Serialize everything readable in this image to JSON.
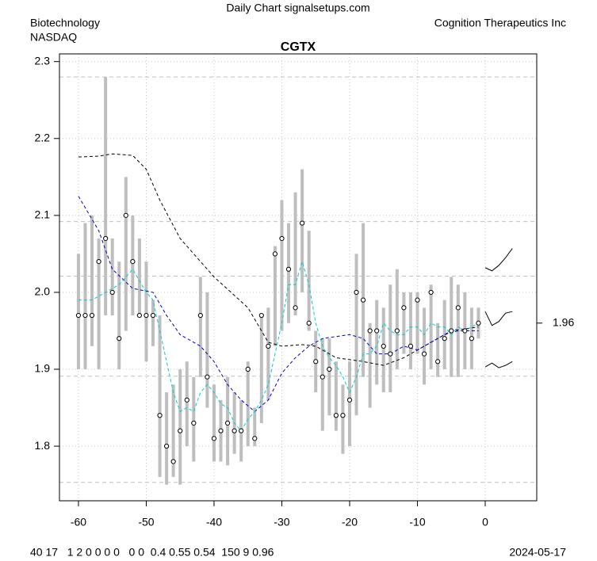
{
  "chart_data": {
    "type": "hilo",
    "title": "CGTX",
    "source": "Daily Chart signalsetups.com",
    "sector": "Biotechnology",
    "exchange": "NASDAQ",
    "company": "Cognition Therapeutics Inc",
    "footer_stats": "40 17   1 2 0 0 0 0   0 0  0.4 0.55 0.54  150 9 0.96",
    "date": "2024-05-17",
    "xlim": [
      -62.8,
      7.6
    ],
    "ylim": [
      1.729,
      2.31
    ],
    "xticks": [
      -60,
      -50,
      -40,
      -30,
      -20,
      -10,
      0
    ],
    "yticks": [
      1.8,
      1.9,
      {
        "value": 2,
        "label": "2.0"
      },
      2.1,
      2.2,
      2.3
    ],
    "grid": true,
    "hlines": [
      2.28,
      2.092,
      2.021,
      1.891,
      1.753
    ],
    "right_tick": 1.96,
    "bar_color": "#bebebe",
    "x": [
      -60,
      -59,
      -58,
      -57,
      -56,
      -55,
      -54,
      -53,
      -52,
      -51,
      -50,
      -49,
      -48,
      -47,
      -46,
      -45,
      -44,
      -43,
      -42,
      -41,
      -40,
      -39,
      -38,
      -37,
      -36,
      -35,
      -34,
      -33,
      -32,
      -31,
      -30,
      -29,
      -28,
      -27,
      -26,
      -25,
      -24,
      -23,
      -22,
      -21,
      -20,
      -19,
      -18,
      -17,
      -16,
      -15,
      -14,
      -13,
      -12,
      -11,
      -10,
      -9,
      -8,
      -7,
      -6,
      -5,
      -4,
      -3,
      -2,
      -1
    ],
    "high": [
      2.05,
      2.09,
      2.1,
      2.07,
      2.28,
      2.07,
      2.04,
      2.15,
      2.1,
      2.07,
      2.04,
      1.99,
      1.97,
      1.87,
      1.88,
      1.9,
      1.91,
      1.89,
      2.02,
      2.0,
      1.88,
      1.86,
      1.89,
      1.87,
      1.86,
      1.91,
      1.85,
      1.97,
      1.98,
      2.06,
      2.12,
      2.09,
      2.13,
      2.16,
      2.08,
      1.95,
      1.94,
      1.94,
      1.91,
      1.88,
      1.91,
      2.05,
      2.09,
      1.96,
      1.99,
      1.98,
      2.01,
      2.03,
      2.0,
      2.0,
      2.0,
      1.98,
      2.01,
      1.96,
      1.99,
      2.02,
      2.01,
      2.0,
      1.98,
      1.98
    ],
    "low": [
      1.9,
      1.9,
      1.93,
      1.9,
      1.97,
      1.97,
      1.9,
      1.95,
      1.97,
      1.97,
      1.91,
      1.93,
      1.76,
      1.75,
      1.76,
      1.75,
      1.8,
      1.78,
      1.89,
      1.85,
      1.78,
      1.78,
      1.775,
      1.79,
      1.78,
      1.8,
      1.8,
      1.83,
      1.86,
      1.93,
      1.95,
      1.96,
      1.97,
      2.0,
      1.95,
      1.87,
      1.82,
      1.84,
      1.82,
      1.79,
      1.8,
      1.84,
      1.89,
      1.85,
      1.88,
      1.87,
      1.87,
      1.9,
      1.92,
      1.9,
      1.92,
      1.88,
      1.9,
      1.89,
      1.9,
      1.89,
      1.89,
      1.9,
      1.9,
      1.94
    ],
    "close": [
      1.97,
      1.97,
      1.97,
      2.04,
      2.07,
      2.0,
      1.94,
      2.1,
      2.04,
      1.97,
      1.97,
      1.97,
      1.84,
      1.8,
      1.78,
      1.82,
      1.86,
      1.83,
      1.97,
      1.89,
      1.81,
      1.82,
      1.83,
      1.82,
      1.82,
      1.9,
      1.81,
      1.97,
      1.93,
      2.05,
      2.07,
      2.03,
      1.98,
      2.09,
      1.96,
      1.91,
      1.89,
      1.9,
      1.84,
      1.84,
      1.86,
      2.0,
      1.99,
      1.95,
      1.95,
      1.93,
      1.92,
      1.95,
      1.98,
      1.93,
      1.99,
      1.92,
      2.0,
      1.91,
      1.94,
      1.95,
      1.98,
      1.95,
      1.94,
      1.96
    ],
    "series": [
      {
        "color": "#000000",
        "dash": true,
        "x": [
          -60,
          -57,
          -55,
          -52,
          -50,
          -48,
          -45,
          -40,
          -35,
          -32,
          -30,
          -27,
          -25,
          -22,
          -18,
          -15,
          -12,
          -8,
          -5,
          -1
        ],
        "values": [
          2.176,
          2.177,
          2.18,
          2.178,
          2.16,
          2.12,
          2.07,
          2.02,
          1.98,
          1.935,
          1.93,
          1.932,
          1.93,
          1.915,
          1.91,
          1.905,
          1.915,
          1.935,
          1.95,
          1.955
        ]
      },
      {
        "color": "#0000cd",
        "dash": true,
        "x": [
          -60,
          -57,
          -55,
          -52,
          -49,
          -47,
          -45,
          -42,
          -40,
          -38,
          -36,
          -34,
          -32,
          -30,
          -28,
          -26,
          -24,
          -20,
          -18,
          -16,
          -14,
          -12,
          -10,
          -8,
          -6,
          -4,
          -1
        ],
        "values": [
          2.125,
          2.08,
          2.03,
          2.005,
          2.0,
          1.97,
          1.945,
          1.93,
          1.91,
          1.88,
          1.86,
          1.845,
          1.86,
          1.895,
          1.915,
          1.93,
          1.94,
          1.945,
          1.94,
          1.92,
          1.92,
          1.93,
          1.925,
          1.935,
          1.945,
          1.95,
          1.95
        ]
      },
      {
        "color": "#00ced1",
        "dash": true,
        "x": [
          -60,
          -58,
          -56,
          -54,
          -52,
          -50,
          -49,
          -48,
          -47,
          -46,
          -45,
          -44,
          -43,
          -42,
          -41,
          -40,
          -39,
          -38,
          -37,
          -36,
          -35,
          -34,
          -33,
          -32,
          -31,
          -30,
          -29,
          -28,
          -27,
          -26,
          -25,
          -24,
          -23,
          -22,
          -21,
          -20,
          -19,
          -18,
          -17,
          -16,
          -15,
          -14,
          -13,
          -12,
          -11,
          -10,
          -9,
          -8,
          -7,
          -6,
          -5,
          -4,
          -3,
          -2,
          -1
        ],
        "values": [
          1.99,
          1.99,
          2.0,
          2.01,
          2.03,
          2.0,
          1.99,
          1.95,
          1.91,
          1.87,
          1.845,
          1.85,
          1.845,
          1.87,
          1.88,
          1.87,
          1.855,
          1.85,
          1.83,
          1.82,
          1.835,
          1.845,
          1.86,
          1.88,
          1.92,
          1.96,
          2.01,
          2.01,
          2.04,
          2.01,
          1.96,
          1.93,
          1.915,
          1.905,
          1.89,
          1.87,
          1.89,
          1.92,
          1.92,
          1.93,
          1.96,
          1.95,
          1.945,
          1.945,
          1.955,
          1.955,
          1.945,
          1.96,
          1.955,
          1.955,
          1.945,
          1.955,
          1.95,
          1.955,
          1.96
        ]
      },
      {
        "color": "#000000",
        "dash": false,
        "x": [
          0,
          1,
          2,
          3,
          4
        ],
        "values": [
          2.032,
          2.028,
          2.035,
          2.045,
          2.057
        ]
      },
      {
        "color": "#000000",
        "dash": false,
        "x": [
          0,
          1,
          2,
          3,
          4
        ],
        "values": [
          1.975,
          1.957,
          1.962,
          1.973,
          1.975
        ]
      },
      {
        "color": "#000000",
        "dash": false,
        "x": [
          0,
          1,
          2,
          3,
          4
        ],
        "values": [
          1.903,
          1.908,
          1.902,
          1.905,
          1.91
        ]
      }
    ]
  }
}
